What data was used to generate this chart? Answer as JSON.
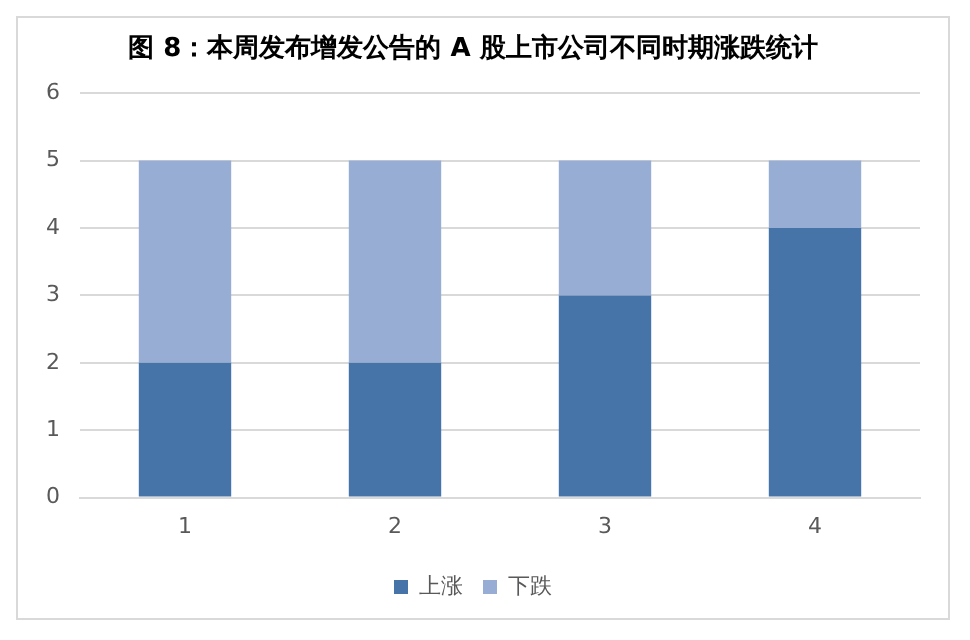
{
  "chart_data": {
    "type": "bar",
    "title": "图 8：本周发布增发公告的 A 股上市公司不同时期涨跌统计",
    "categories": [
      "1",
      "2",
      "3",
      "4"
    ],
    "stacked": true,
    "series": [
      {
        "name": "上涨",
        "color": "#4674a8",
        "values": [
          2,
          2,
          3,
          4
        ]
      },
      {
        "name": "下跌",
        "color": "#97add3",
        "values": [
          3,
          3,
          2,
          1
        ]
      }
    ],
    "ylim": [
      0,
      6
    ],
    "yticks": [
      0,
      1,
      2,
      3,
      4,
      5,
      6
    ],
    "grid": "y",
    "legend": "bottom"
  }
}
